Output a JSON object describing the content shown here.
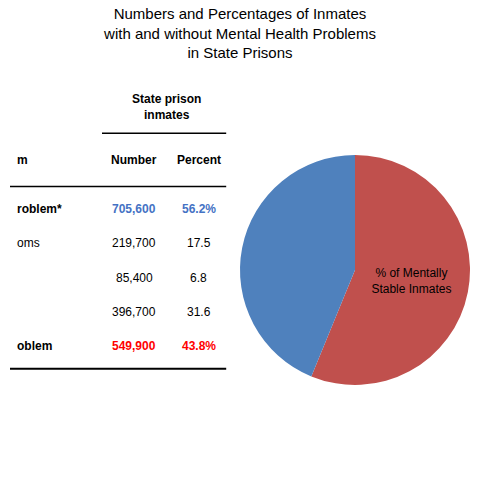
{
  "chart_data": {
    "type": "pie",
    "title": "Numbers and Percentages of Inmates\nwith and without Mental Health Problems\nin State Prisons",
    "values": [
      56.2,
      43.8
    ],
    "colors": [
      "#C0504D",
      "#4F81BD"
    ],
    "annotations": [
      "% of Mentally\nStable Inmates"
    ],
    "table": {
      "span_header": "State prison\ninmates",
      "headers": [
        "m",
        "Number",
        "Percent"
      ],
      "rows": [
        {
          "label": "roblem*",
          "number": "705,600",
          "percent": "56.2%",
          "color": "#4472C4"
        },
        {
          "label": "oms",
          "number": "219,700",
          "percent": "17.5",
          "color": null
        },
        {
          "label": null,
          "number": "85,400",
          "percent": "6.8",
          "color": null
        },
        {
          "label": null,
          "number": "396,700",
          "percent": "31.6",
          "color": null
        },
        {
          "label": "oblem",
          "number": "549,900",
          "percent": "43.8%",
          "color": "#FF0000"
        }
      ]
    }
  }
}
